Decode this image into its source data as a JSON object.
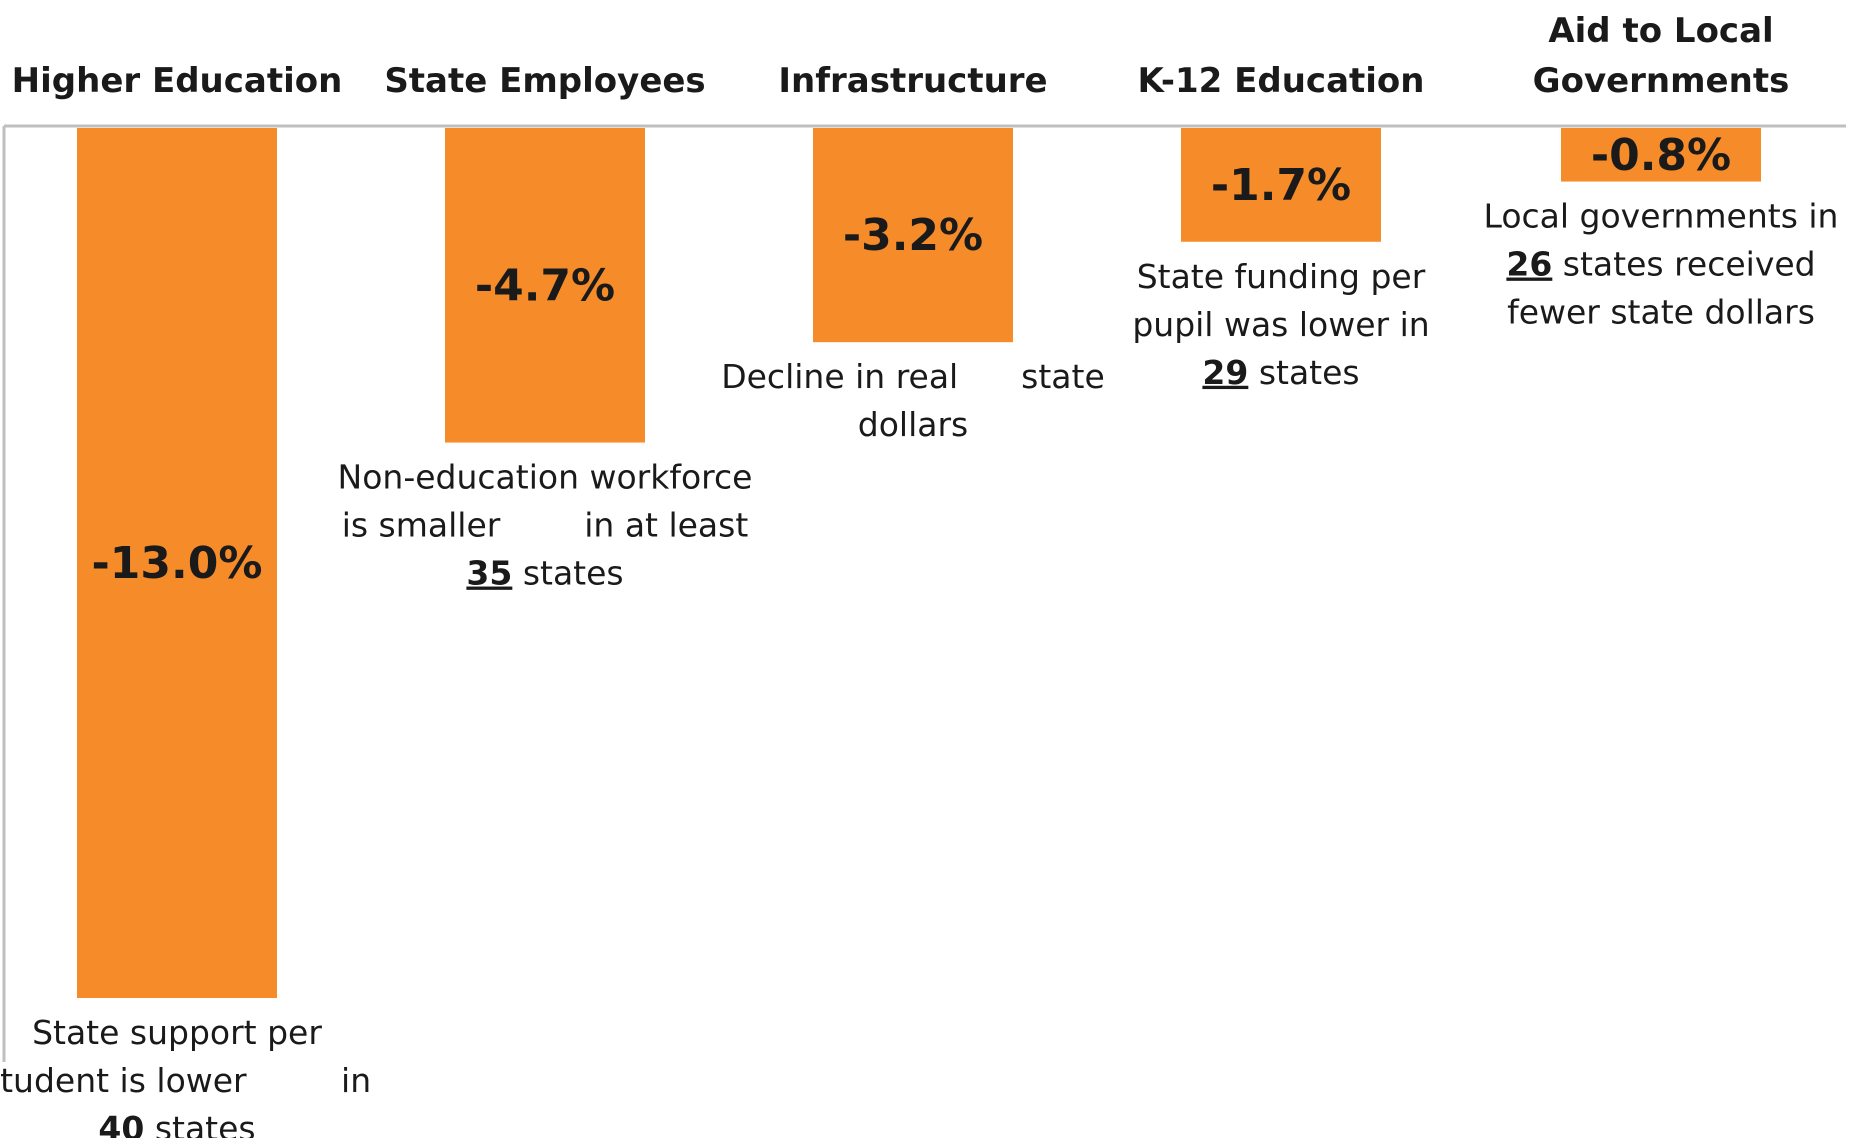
{
  "chart_data": {
    "type": "bar",
    "categories": [
      "Higher Education",
      "State Employees",
      "Infrastructure",
      "K-12 Education",
      "Aid to Local Governments"
    ],
    "values": [
      -13.0,
      -4.7,
      -3.2,
      -1.7,
      -0.8
    ],
    "value_labels": [
      "-13.0%",
      "-4.7%",
      "-3.2%",
      "-1.7%",
      "-0.8%"
    ],
    "bar_color": "#f68b2a",
    "axis_color": "#bfbfbf",
    "ylim": [
      -13.0,
      0
    ],
    "grid": false,
    "legend": "none",
    "category_label_lines": [
      [
        "Higher Education"
      ],
      [
        "State Employees"
      ],
      [
        "Infrastructure"
      ],
      [
        "K-12 Education"
      ],
      [
        "Aid to Local",
        "Governments"
      ]
    ],
    "annotations": [
      [
        [
          {
            "t": "State support per"
          }
        ],
        [
          {
            "t": "student is lower         in"
          }
        ],
        [
          {
            "t": "40",
            "b": true
          },
          {
            "t": " states"
          }
        ]
      ],
      [
        [
          {
            "t": "Non-education workforce"
          }
        ],
        [
          {
            "t": "is smaller        in at least"
          }
        ],
        [
          {
            "t": "35",
            "b": true
          },
          {
            "t": " states"
          }
        ]
      ],
      [
        [
          {
            "t": "Decline in real      state"
          }
        ],
        [
          {
            "t": "dollars"
          }
        ]
      ],
      [
        [
          {
            "t": "State funding per"
          }
        ],
        [
          {
            "t": "pupil was lower in"
          }
        ],
        [
          {
            "t": "29",
            "b": true
          },
          {
            "t": " states"
          }
        ]
      ],
      [
        [
          {
            "t": "Local governments in"
          }
        ],
        [
          {
            "t": "26",
            "b": true
          },
          {
            "t": " states received"
          }
        ],
        [
          {
            "t": "fewer state dollars"
          }
        ]
      ]
    ]
  }
}
